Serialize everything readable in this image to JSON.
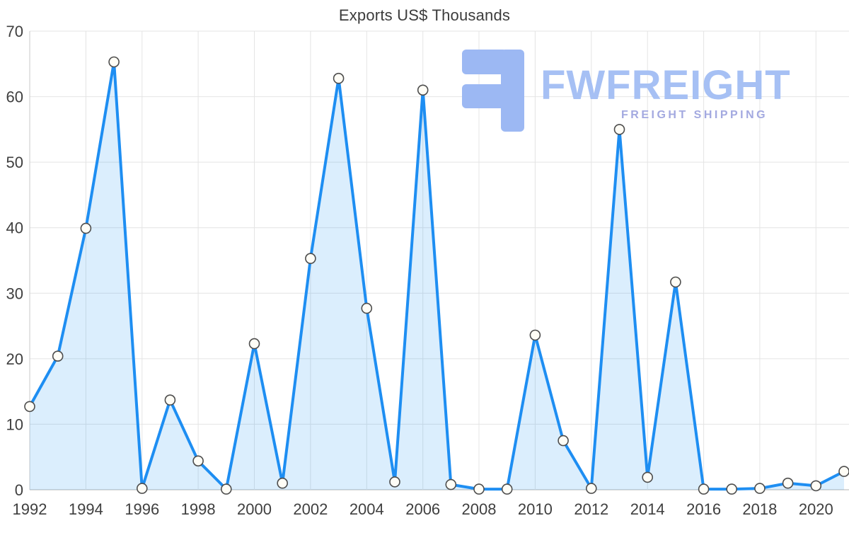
{
  "chart": {
    "title": "Exports US$ Thousands"
  },
  "watermark": {
    "brand": "FWFREIGHT",
    "tagline": "FREIGHT SHIPPING",
    "logo_color": "#9cb8f3",
    "brand_color": "#a6c0f4",
    "tagline_color": "#a3a9e0"
  },
  "chart_data": {
    "type": "area",
    "title": "Exports US$ Thousands",
    "x": [
      1992,
      1993,
      1994,
      1995,
      1996,
      1997,
      1998,
      1999,
      2000,
      2001,
      2002,
      2003,
      2004,
      2005,
      2006,
      2007,
      2008,
      2009,
      2010,
      2011,
      2012,
      2013,
      2014,
      2015,
      2016,
      2017,
      2018,
      2019,
      2020,
      2021
    ],
    "values": [
      12.7,
      20.4,
      39.9,
      65.3,
      0.2,
      13.7,
      4.4,
      0.1,
      22.3,
      1.0,
      35.3,
      62.8,
      27.7,
      1.2,
      61.0,
      0.8,
      0.1,
      0.1,
      23.6,
      7.5,
      0.2,
      55.0,
      1.9,
      31.7,
      0.1,
      0.1,
      0.2,
      1.0,
      0.6,
      2.8
    ],
    "xlabel": "",
    "ylabel": "",
    "ylim": [
      0,
      70
    ],
    "y_ticks": [
      0,
      10,
      20,
      30,
      40,
      50,
      60,
      70
    ],
    "x_tick_labels": [
      1992,
      1994,
      1996,
      1998,
      2000,
      2002,
      2004,
      2006,
      2008,
      2010,
      2012,
      2014,
      2016,
      2018,
      2020
    ],
    "grid": true,
    "legend": "none",
    "line_color": "#1e8ef2",
    "fill_color": "rgba(33,150,243,0.16)",
    "marker_fill": "#fffdf6",
    "marker_stroke": "#4d4d4d",
    "gridline_color": "#e4e4e4",
    "axis_line_color": "#b3b3b3",
    "tick_label_color": "#3f3f3f"
  }
}
